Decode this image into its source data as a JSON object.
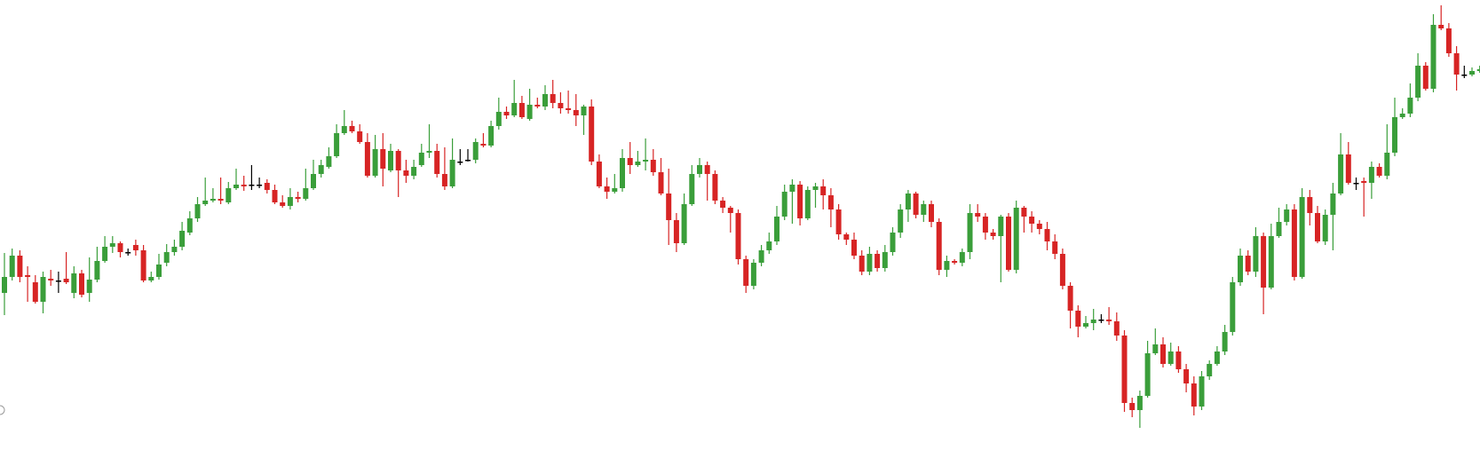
{
  "chart_data": {
    "type": "candlestick",
    "title": "",
    "xlabel": "",
    "ylabel": "",
    "axes_visible": false,
    "grid": false,
    "legend": "none",
    "colors": {
      "up": "#3a9e3a",
      "down": "#d72424",
      "doji": "#000000"
    },
    "ylim": [
      0,
      525
    ],
    "candles": [
      [
        330,
        312,
        285,
        355
      ],
      [
        312,
        288,
        280,
        316
      ],
      [
        288,
        312,
        282,
        318
      ],
      [
        310,
        312,
        300,
        340
      ],
      [
        318,
        340,
        310,
        342
      ],
      [
        340,
        312,
        306,
        353
      ],
      [
        314,
        316,
        304,
        322
      ],
      [
        316,
        316,
        306,
        330
      ],
      [
        314,
        318,
        284,
        320
      ],
      [
        330,
        308,
        300,
        336
      ],
      [
        308,
        332,
        304,
        335
      ],
      [
        330,
        315,
        290,
        340
      ],
      [
        315,
        294,
        278,
        318
      ],
      [
        294,
        278,
        266,
        296
      ],
      [
        278,
        274,
        266,
        285
      ],
      [
        274,
        284,
        272,
        290
      ],
      [
        284,
        284,
        280,
        288
      ],
      [
        276,
        282,
        270,
        288
      ],
      [
        282,
        316,
        276,
        318
      ],
      [
        316,
        312,
        306,
        318
      ],
      [
        312,
        298,
        286,
        315
      ],
      [
        296,
        284,
        275,
        300
      ],
      [
        284,
        278,
        270,
        288
      ],
      [
        278,
        260,
        250,
        282
      ],
      [
        262,
        246,
        238,
        265
      ],
      [
        246,
        230,
        222,
        250
      ],
      [
        230,
        226,
        200,
        232
      ],
      [
        226,
        224,
        212,
        228
      ],
      [
        224,
        226,
        200,
        230
      ],
      [
        228,
        212,
        205,
        230
      ],
      [
        212,
        208,
        190,
        214
      ],
      [
        208,
        210,
        198,
        215
      ],
      [
        208,
        208,
        186,
        214
      ],
      [
        208,
        208,
        200,
        212
      ],
      [
        206,
        214,
        202,
        218
      ],
      [
        214,
        228,
        208,
        230
      ],
      [
        228,
        232,
        220,
        234
      ],
      [
        232,
        222,
        212,
        236
      ],
      [
        222,
        224,
        216,
        228
      ],
      [
        224,
        212,
        190,
        226
      ],
      [
        212,
        196,
        180,
        214
      ],
      [
        196,
        186,
        180,
        200
      ],
      [
        188,
        176,
        166,
        190
      ],
      [
        176,
        150,
        140,
        178
      ],
      [
        150,
        142,
        124,
        152
      ],
      [
        142,
        148,
        136,
        150
      ],
      [
        148,
        160,
        140,
        162
      ],
      [
        160,
        198,
        150,
        200
      ],
      [
        198,
        168,
        152,
        200
      ],
      [
        168,
        190,
        150,
        210
      ],
      [
        192,
        170,
        162,
        194
      ],
      [
        170,
        192,
        168,
        222
      ],
      [
        192,
        198,
        180,
        206
      ],
      [
        198,
        188,
        180,
        202
      ],
      [
        186,
        172,
        162,
        188
      ],
      [
        172,
        170,
        140,
        178
      ],
      [
        170,
        196,
        162,
        200
      ],
      [
        196,
        210,
        166,
        214
      ],
      [
        210,
        180,
        156,
        212
      ],
      [
        182,
        182,
        168,
        186
      ],
      [
        180,
        180,
        168,
        182
      ],
      [
        180,
        160,
        156,
        184
      ],
      [
        162,
        164,
        150,
        166
      ],
      [
        164,
        142,
        136,
        166
      ],
      [
        142,
        126,
        110,
        146
      ],
      [
        126,
        130,
        120,
        134
      ],
      [
        130,
        116,
        90,
        132
      ],
      [
        116,
        132,
        108,
        134
      ],
      [
        134,
        118,
        100,
        136
      ],
      [
        118,
        120,
        110,
        122
      ],
      [
        120,
        106,
        96,
        124
      ],
      [
        106,
        116,
        90,
        122
      ],
      [
        116,
        122,
        104,
        128
      ],
      [
        122,
        124,
        102,
        128
      ],
      [
        124,
        130,
        106,
        142
      ],
      [
        130,
        120,
        118,
        152
      ],
      [
        120,
        182,
        112,
        186
      ],
      [
        182,
        210,
        174,
        212
      ],
      [
        210,
        216,
        200,
        224
      ],
      [
        216,
        212,
        196,
        218
      ],
      [
        212,
        178,
        168,
        216
      ],
      [
        178,
        186,
        160,
        196
      ],
      [
        186,
        182,
        170,
        188
      ],
      [
        182,
        180,
        156,
        192
      ],
      [
        180,
        194,
        168,
        198
      ],
      [
        194,
        218,
        178,
        220
      ],
      [
        218,
        248,
        190,
        276
      ],
      [
        248,
        274,
        240,
        284
      ],
      [
        274,
        230,
        218,
        276
      ],
      [
        230,
        196,
        186,
        232
      ],
      [
        196,
        186,
        178,
        200
      ],
      [
        186,
        196,
        182,
        226
      ],
      [
        196,
        226,
        192,
        230
      ],
      [
        226,
        234,
        222,
        240
      ],
      [
        234,
        240,
        232,
        262
      ],
      [
        240,
        292,
        236,
        298
      ],
      [
        292,
        322,
        288,
        330
      ],
      [
        322,
        296,
        292,
        326
      ],
      [
        296,
        282,
        276,
        300
      ],
      [
        282,
        272,
        262,
        286
      ],
      [
        272,
        244,
        232,
        276
      ],
      [
        244,
        216,
        208,
        248
      ],
      [
        216,
        208,
        202,
        252
      ],
      [
        208,
        246,
        204,
        254
      ],
      [
        246,
        214,
        210,
        248
      ],
      [
        214,
        210,
        206,
        234
      ],
      [
        210,
        220,
        202,
        236
      ],
      [
        220,
        236,
        212,
        256
      ],
      [
        236,
        264,
        230,
        270
      ],
      [
        264,
        270,
        262,
        276
      ],
      [
        270,
        288,
        262,
        292
      ],
      [
        288,
        306,
        282,
        310
      ],
      [
        306,
        286,
        278,
        310
      ],
      [
        286,
        302,
        282,
        306
      ],
      [
        302,
        284,
        276,
        306
      ],
      [
        284,
        262,
        256,
        288
      ],
      [
        262,
        236,
        230,
        268
      ],
      [
        236,
        218,
        214,
        250
      ],
      [
        218,
        242,
        216,
        246
      ],
      [
        242,
        230,
        226,
        250
      ],
      [
        230,
        250,
        226,
        256
      ],
      [
        250,
        304,
        246,
        310
      ],
      [
        304,
        294,
        288,
        312
      ],
      [
        294,
        296,
        292,
        298
      ],
      [
        296,
        284,
        280,
        300
      ],
      [
        284,
        240,
        230,
        292
      ],
      [
        240,
        244,
        230,
        250
      ],
      [
        244,
        262,
        240,
        270
      ],
      [
        262,
        266,
        258,
        270
      ],
      [
        266,
        244,
        242,
        318
      ],
      [
        244,
        304,
        240,
        306
      ],
      [
        304,
        234,
        226,
        308
      ],
      [
        234,
        244,
        232,
        262
      ],
      [
        244,
        252,
        238,
        262
      ],
      [
        252,
        258,
        248,
        264
      ],
      [
        258,
        272,
        250,
        282
      ],
      [
        272,
        286,
        264,
        292
      ],
      [
        286,
        322,
        280,
        326
      ],
      [
        322,
        350,
        318,
        370
      ],
      [
        350,
        368,
        344,
        380
      ],
      [
        368,
        364,
        356,
        370
      ],
      [
        364,
        360,
        348,
        372
      ],
      [
        360,
        360,
        354,
        364
      ],
      [
        360,
        362,
        346,
        366
      ],
      [
        362,
        378,
        352,
        384
      ],
      [
        378,
        454,
        372,
        464
      ],
      [
        454,
        462,
        448,
        470
      ],
      [
        462,
        446,
        440,
        482
      ],
      [
        446,
        398,
        384,
        448
      ],
      [
        398,
        388,
        370,
        400
      ],
      [
        388,
        410,
        380,
        414
      ],
      [
        410,
        396,
        386,
        412
      ],
      [
        396,
        416,
        390,
        420
      ],
      [
        416,
        432,
        410,
        442
      ],
      [
        432,
        458,
        424,
        468
      ],
      [
        458,
        424,
        418,
        462
      ],
      [
        424,
        410,
        406,
        428
      ],
      [
        410,
        396,
        390,
        412
      ],
      [
        396,
        374,
        366,
        400
      ],
      [
        374,
        318,
        312,
        378
      ],
      [
        318,
        288,
        280,
        322
      ],
      [
        288,
        306,
        282,
        310
      ],
      [
        306,
        266,
        256,
        312
      ],
      [
        266,
        324,
        262,
        354
      ],
      [
        324,
        266,
        252,
        326
      ],
      [
        266,
        250,
        234,
        268
      ],
      [
        250,
        236,
        230,
        254
      ],
      [
        236,
        312,
        230,
        316
      ],
      [
        312,
        222,
        212,
        314
      ],
      [
        222,
        240,
        214,
        254
      ],
      [
        240,
        272,
        232,
        274
      ],
      [
        272,
        242,
        236,
        276
      ],
      [
        242,
        218,
        206,
        282
      ],
      [
        218,
        174,
        150,
        220
      ],
      [
        174,
        206,
        160,
        208
      ],
      [
        206,
        206,
        200,
        214
      ],
      [
        204,
        206,
        200,
        244
      ],
      [
        206,
        188,
        182,
        224
      ],
      [
        188,
        198,
        184,
        200
      ],
      [
        198,
        172,
        140,
        202
      ],
      [
        172,
        132,
        110,
        176
      ],
      [
        132,
        128,
        122,
        134
      ],
      [
        128,
        110,
        94,
        132
      ],
      [
        110,
        74,
        60,
        114
      ],
      [
        74,
        100,
        70,
        102
      ],
      [
        100,
        28,
        16,
        104
      ],
      [
        28,
        32,
        6,
        34
      ],
      [
        32,
        60,
        26,
        64
      ],
      [
        60,
        84,
        52,
        102
      ],
      [
        84,
        84,
        74,
        88
      ],
      [
        84,
        80,
        76,
        86
      ],
      [
        80,
        78,
        74,
        82
      ],
      [
        78,
        80,
        70,
        82
      ],
      [
        80,
        112,
        62,
        114
      ],
      [
        112,
        104,
        90,
        116
      ],
      [
        104,
        98,
        90,
        110
      ],
      [
        98,
        102,
        94,
        104
      ],
      [
        98,
        116,
        90,
        136
      ]
    ]
  }
}
